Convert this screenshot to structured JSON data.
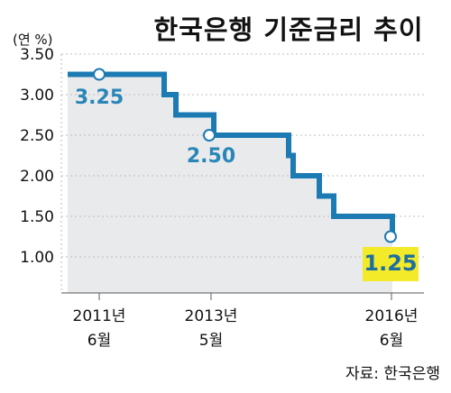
{
  "title": "한국은행 기준금리 추이",
  "unit_label": "(연 %)",
  "source": "자료: 한국은행",
  "colors": {
    "line": "#1c7bb3",
    "area": "#e9eaec",
    "highlight_bg": "#f3ea2a",
    "grid": "#bdbdbd",
    "label": "#2a86b8"
  },
  "chart_data": {
    "type": "line",
    "step": true,
    "ylim": [
      0.6,
      3.5
    ],
    "y_ticks": [
      "3.50",
      "3.00",
      "2.50",
      "2.00",
      "1.50",
      "1.00"
    ],
    "x_ticks": [
      {
        "line1": "2011년",
        "line2": "6월"
      },
      {
        "line1": "2013년",
        "line2": "5월"
      },
      {
        "line1": "2016년",
        "line2": "6월"
      }
    ],
    "series": [
      {
        "values": [
          3.25,
          3.25,
          3.25,
          3.0,
          2.75,
          2.5,
          2.5,
          2.5,
          2.25,
          2.0,
          1.75,
          1.5,
          1.5,
          1.25
        ]
      }
    ],
    "data_labels": [
      {
        "text": "3.25",
        "value": 3.25
      },
      {
        "text": "2.50",
        "value": 2.5
      },
      {
        "text": "1.25",
        "value": 1.25,
        "highlight": true
      }
    ]
  }
}
